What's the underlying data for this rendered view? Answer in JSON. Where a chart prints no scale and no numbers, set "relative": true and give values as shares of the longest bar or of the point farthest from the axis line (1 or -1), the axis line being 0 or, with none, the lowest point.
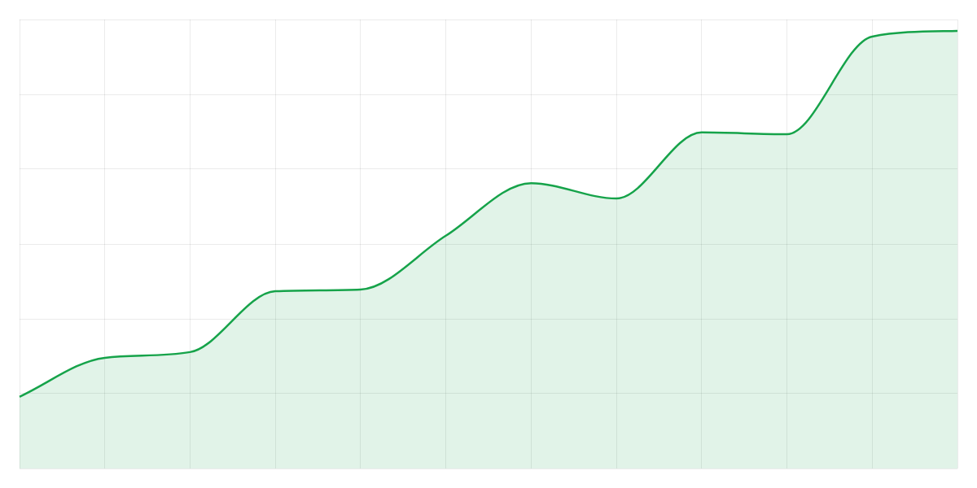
{
  "chart_data": {
    "type": "area",
    "relative": true,
    "grid": true,
    "categories": [
      null,
      null,
      null,
      null,
      null,
      null,
      null,
      null,
      null,
      null,
      null,
      null
    ],
    "series": [
      {
        "color": "#16a34a",
        "values": [
          0.164,
          0.253,
          0.266,
          0.405,
          0.409,
          0.532,
          0.652,
          0.617,
          0.768,
          0.764,
          0.987,
          1
        ]
      }
    ]
  }
}
